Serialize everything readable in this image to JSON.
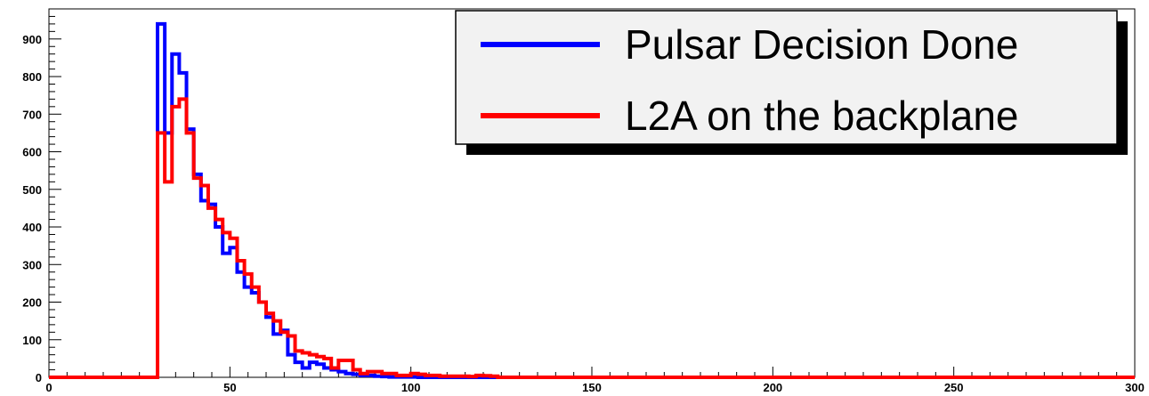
{
  "chart_data": {
    "type": "line",
    "title": "",
    "xlabel": "",
    "ylabel": "",
    "xlim": [
      0,
      300
    ],
    "ylim": [
      0,
      980
    ],
    "bin_width": 2,
    "x_start": 0,
    "x_ticks": [
      "0",
      "50",
      "100",
      "150",
      "200",
      "250",
      "300"
    ],
    "y_ticks": [
      "0",
      "100",
      "200",
      "300",
      "400",
      "500",
      "600",
      "700",
      "800",
      "900"
    ],
    "grid": false,
    "legend_position": "top-right",
    "legend": [
      {
        "label": "Pulsar Decision Done",
        "color": "#0000ff"
      },
      {
        "label": "L2A on the backplane",
        "color": "#ff0000"
      }
    ],
    "series": [
      {
        "label_index": 0,
        "color": "#0000ff",
        "values": [
          0,
          0,
          0,
          0,
          0,
          0,
          0,
          0,
          0,
          0,
          0,
          0,
          0,
          0,
          0,
          940,
          650,
          860,
          810,
          660,
          540,
          470,
          460,
          400,
          330,
          345,
          280,
          240,
          225,
          200,
          160,
          115,
          125,
          60,
          40,
          25,
          40,
          35,
          25,
          20,
          15,
          10,
          8,
          5,
          5,
          3,
          2,
          1,
          1,
          1,
          1,
          0,
          0,
          0,
          0,
          0,
          0,
          0,
          0,
          0,
          0,
          0,
          0,
          0,
          0,
          0,
          0,
          0,
          0,
          0,
          0,
          0,
          0,
          0,
          0,
          0,
          0,
          0,
          0,
          0,
          0,
          0,
          0,
          0,
          0,
          0,
          0,
          0,
          0,
          0,
          0,
          0,
          0,
          0,
          0,
          0,
          0,
          0,
          0,
          0,
          0,
          0,
          0,
          0,
          0,
          0,
          0,
          0,
          0,
          0,
          0,
          0,
          0,
          0,
          0,
          0,
          0,
          0,
          0,
          0,
          0,
          0,
          0,
          0,
          0,
          0,
          0,
          0,
          0,
          0,
          0,
          0,
          0,
          0,
          0,
          0,
          0,
          0,
          0,
          0,
          0,
          0,
          0,
          0,
          0,
          0,
          0,
          0,
          0,
          0
        ]
      },
      {
        "label_index": 1,
        "color": "#ff0000",
        "values": [
          0,
          0,
          0,
          0,
          0,
          0,
          0,
          0,
          0,
          0,
          0,
          0,
          0,
          0,
          0,
          650,
          520,
          720,
          740,
          650,
          530,
          510,
          450,
          420,
          385,
          370,
          310,
          275,
          240,
          200,
          170,
          150,
          120,
          110,
          70,
          65,
          60,
          55,
          50,
          25,
          45,
          45,
          20,
          10,
          15,
          15,
          10,
          10,
          5,
          5,
          10,
          8,
          5,
          5,
          3,
          3,
          3,
          3,
          2,
          5,
          4,
          3,
          0,
          0,
          0,
          0,
          0,
          0,
          0,
          0,
          0,
          0,
          0,
          0,
          0,
          0,
          0,
          0,
          0,
          0,
          0,
          0,
          0,
          0,
          0,
          0,
          0,
          0,
          0,
          0,
          0,
          0,
          0,
          0,
          0,
          0,
          0,
          0,
          0,
          0,
          0,
          0,
          0,
          0,
          0,
          0,
          0,
          0,
          0,
          0,
          0,
          0,
          0,
          0,
          0,
          0,
          0,
          0,
          0,
          0,
          0,
          0,
          0,
          0,
          0,
          0,
          0,
          0,
          0,
          0,
          0,
          0,
          0,
          0,
          0,
          0,
          0,
          0,
          0,
          0,
          0,
          0,
          0,
          0,
          0,
          0,
          0,
          0,
          0,
          0
        ]
      }
    ]
  }
}
